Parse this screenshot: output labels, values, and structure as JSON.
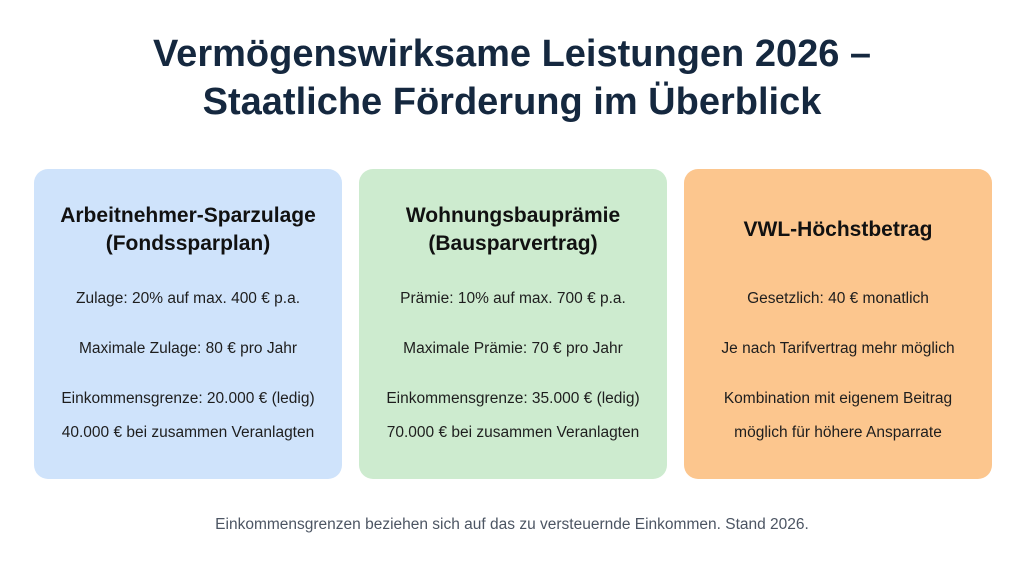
{
  "title": {
    "line1": "Vermögenswirksame Leistungen 2026 –",
    "line2": "Staatliche Förderung im Überblick"
  },
  "cards": [
    {
      "heading": [
        "Arbeitnehmer-Sparzulage",
        "(Fondssparplan)"
      ],
      "color": "#cfe3fb",
      "lines": [
        "Zulage: 20% auf max. 400 € p.a.",
        "Maximale Zulage: 80 € pro Jahr",
        "Einkommensgrenze: 20.000 € (ledig)",
        "40.000 € bei zusammen Veranlagten"
      ]
    },
    {
      "heading": [
        "Wohnungsbauprämie",
        "(Bausparvertrag)"
      ],
      "color": "#cdebcf",
      "lines": [
        "Prämie: 10% auf max. 700 € p.a.",
        "Maximale Prämie: 70 € pro Jahr",
        "Einkommensgrenze: 35.000 € (ledig)",
        "70.000 € bei zusammen Veranlagten"
      ]
    },
    {
      "heading": [
        "VWL-Höchstbetrag"
      ],
      "color": "#fcc68e",
      "lines": [
        "Gesetzlich: 40 € monatlich",
        "Je nach Tarifvertrag mehr möglich",
        "Kombination mit eigenem Beitrag",
        "möglich für höhere Ansparrate"
      ]
    }
  ],
  "footer": "Einkommensgrenzen beziehen sich auf das zu versteuernde Einkommen. Stand 2026."
}
